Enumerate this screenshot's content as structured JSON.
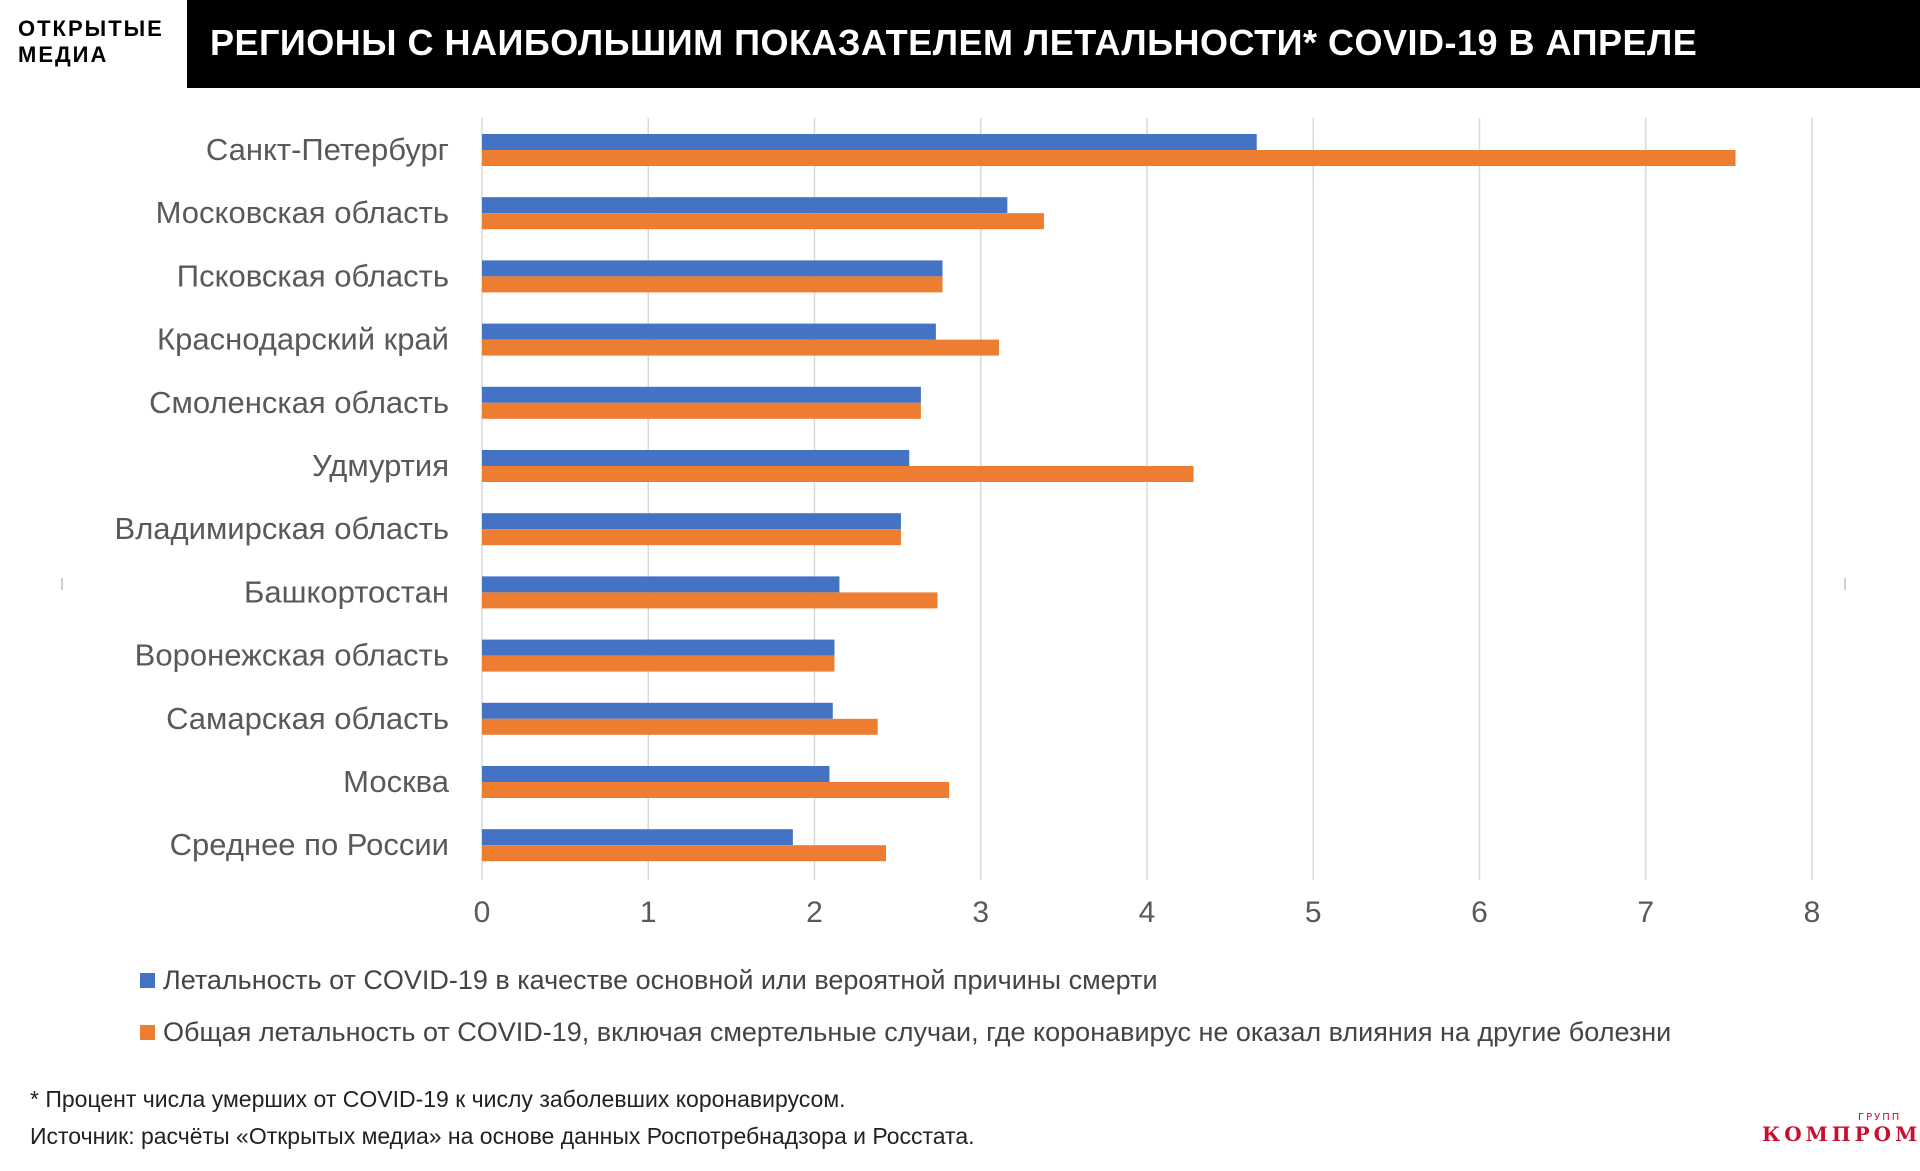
{
  "header": {
    "logo_line1": "ОТКРЫТЫЕ",
    "logo_line2": "МЕДИА",
    "title": "РЕГИОНЫ С НАИБОЛЬШИМ ПОКАЗАТЕЛЕМ ЛЕТАЛЬНОСТИ* COVID-19 В АПРЕЛЕ"
  },
  "colors": {
    "series1": "#4472C4",
    "series2": "#ED7D31",
    "grid": "#d9d9d9",
    "axis_text": "#595959"
  },
  "chart_data": {
    "type": "bar",
    "orientation": "horizontal",
    "categories": [
      "Санкт-Петербург",
      "Московская область",
      "Псковская область",
      "Краснодарский край",
      "Смоленская область",
      "Удмуртия",
      "Владимирская область",
      "Башкортостан",
      "Воронежская область",
      "Самарская область",
      "Москва",
      "Среднее по России"
    ],
    "series": [
      {
        "name": "Летальность от COVID-19 в качестве основной или вероятной причины смерти",
        "values": [
          4.66,
          3.16,
          2.77,
          2.73,
          2.64,
          2.57,
          2.52,
          2.15,
          2.12,
          2.11,
          2.09,
          1.87
        ]
      },
      {
        "name": "Общая летальность от COVID-19, включая смертельные случаи, где коронавирус не оказал влияния на другие болезни",
        "values": [
          7.54,
          3.38,
          2.77,
          3.11,
          2.64,
          4.28,
          2.52,
          2.74,
          2.12,
          2.38,
          2.81,
          2.43
        ]
      }
    ],
    "xlim": [
      0,
      8
    ],
    "xticks": [
      "0",
      "1",
      "2",
      "3",
      "4",
      "5",
      "6",
      "7",
      "8"
    ],
    "grid": true,
    "legend_position": "bottom"
  },
  "footnotes": {
    "note": "* Процент числа умерших от COVID-19 к числу заболевших коронавирусом.",
    "source": "Источник: расчёты «Открытых медиа» на основе данных Роспотребнадзора и Росстата."
  },
  "watermark": {
    "main": "КОМПРОМАТ",
    "small": "ГРУПП"
  }
}
